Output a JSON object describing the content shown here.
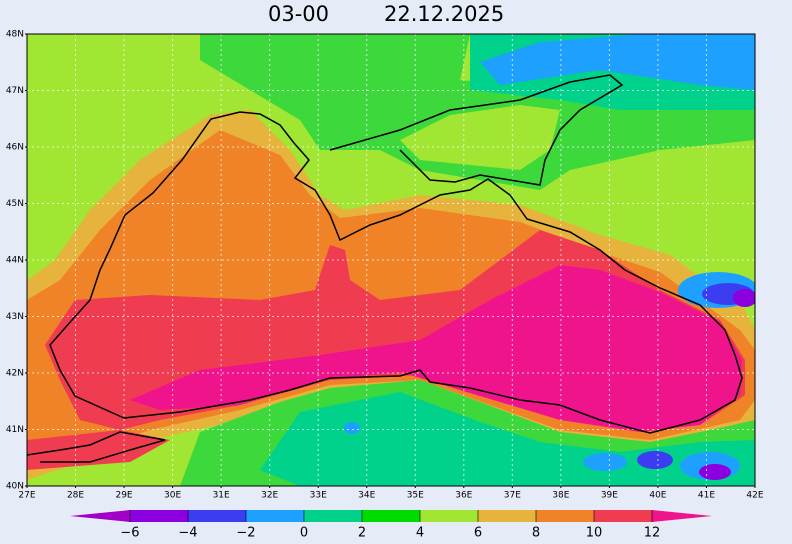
{
  "title": {
    "time": "03-00",
    "date": "22.12.2025"
  },
  "latitude_labels": [
    "40N",
    "41N",
    "42N",
    "43N",
    "44N",
    "45N",
    "46N",
    "47N",
    "48N"
  ],
  "longitude_labels": [
    "27E",
    "28E",
    "29E",
    "30E",
    "31E",
    "32E",
    "33E",
    "34E",
    "35E",
    "36E",
    "37E",
    "38E",
    "39E",
    "40E",
    "41E",
    "42E"
  ],
  "colorbar_labels": [
    "−6",
    "−4",
    "−2",
    "0",
    "2",
    "4",
    "6",
    "8",
    "10",
    "12"
  ]
}
